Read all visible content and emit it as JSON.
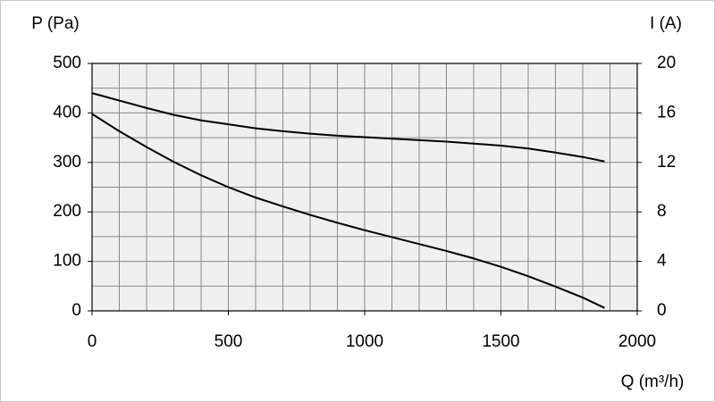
{
  "chart_data": {
    "type": "line",
    "y_label": "P (Pa)",
    "y2_label": "I (A)",
    "x_label": "Q (m³/h)",
    "x": [
      0,
      100,
      200,
      300,
      400,
      500,
      600,
      700,
      800,
      900,
      1000,
      1100,
      1200,
      1300,
      1400,
      1500,
      1600,
      1700,
      1800,
      1880
    ],
    "series": [
      {
        "color": "#000000",
        "values": [
          398,
          363,
          331,
          301,
          274,
          250,
          229,
          211,
          194,
          178,
          163,
          149,
          135,
          121,
          106,
          89,
          70,
          49,
          27,
          6
        ]
      },
      {
        "color": "#000000",
        "axis": "y2",
        "values": [
          17.6,
          17.0,
          16.4,
          15.84,
          15.4,
          15.08,
          14.76,
          14.52,
          14.32,
          14.16,
          14.04,
          13.92,
          13.8,
          13.68,
          13.52,
          13.36,
          13.12,
          12.8,
          12.44,
          12.08
        ]
      }
    ],
    "xlim": [
      0,
      2000
    ],
    "xticks": [
      0,
      500,
      1000,
      1500,
      2000
    ],
    "ylim": [
      0,
      500
    ],
    "yticks": [
      0,
      100,
      200,
      300,
      400,
      500
    ],
    "y2lim": [
      0,
      20
    ],
    "y2ticks": [
      0,
      4,
      8,
      12,
      16,
      20
    ],
    "grid": true,
    "xgrid": [
      0,
      100,
      200,
      300,
      400,
      500,
      600,
      700,
      800,
      900,
      1000,
      1100,
      1200,
      1300,
      1400,
      1500,
      1600,
      1700,
      1800,
      1900,
      2000
    ],
    "ygrid": [
      0,
      50,
      100,
      150,
      200,
      250,
      300,
      350,
      400,
      450,
      500
    ]
  }
}
